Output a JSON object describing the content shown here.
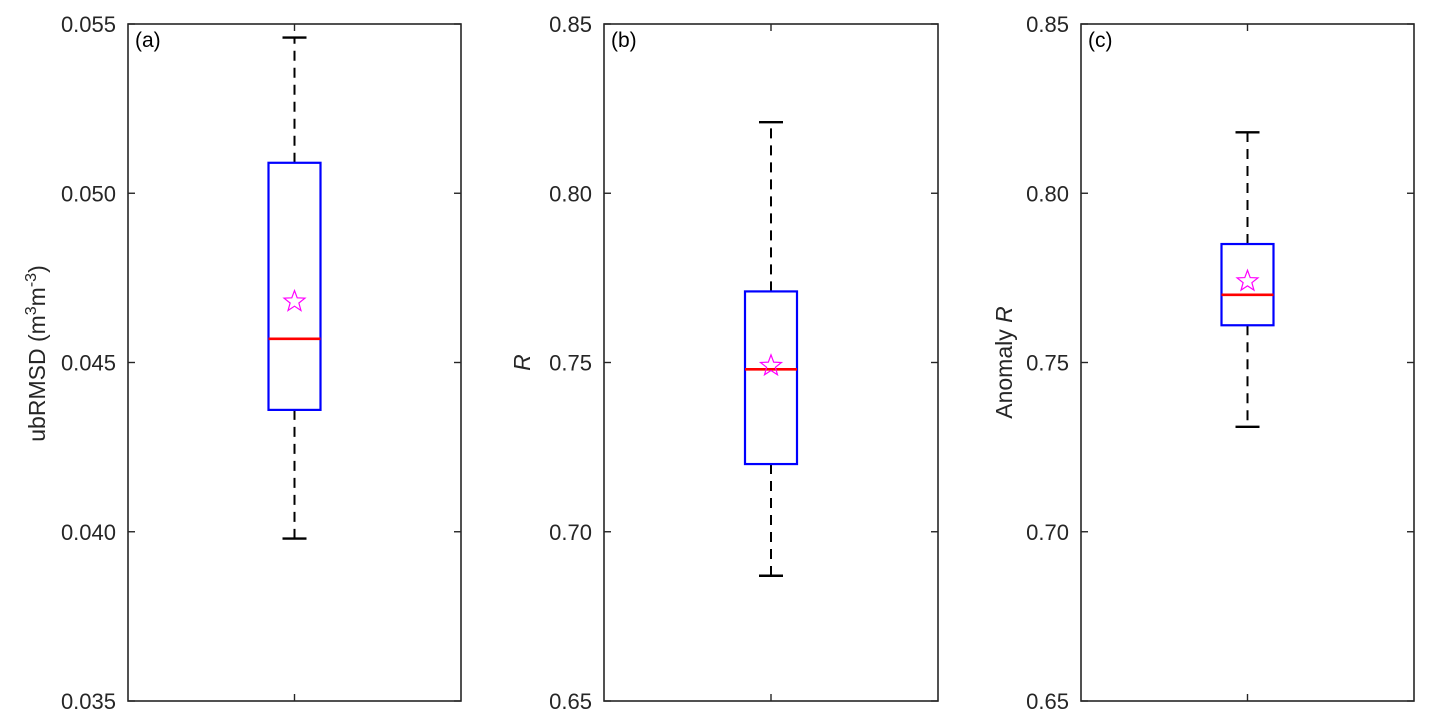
{
  "figure": {
    "panels": [
      {
        "label": "(a)",
        "ylabel": "ubRMSD (m",
        "ylabel_sup1": "3",
        "ylabel_mid": "m",
        "ylabel_sup2": "-3",
        "ylabel_end": ")"
      },
      {
        "label": "(b)",
        "ylabel": "R"
      },
      {
        "label": "(c)",
        "ylabel": "Anomaly",
        "ylabel_italic": "R"
      }
    ]
  },
  "chart_data": [
    {
      "type": "box",
      "panel_label": "(a)",
      "ylabel": "ubRMSD (m3m-3)",
      "ylim": [
        0.035,
        0.055
      ],
      "yticks": [
        0.035,
        0.04,
        0.045,
        0.05,
        0.055
      ],
      "ytick_labels": [
        "0.035",
        "0.040",
        "0.045",
        "0.050",
        "0.055"
      ],
      "box": {
        "whisker_low": 0.0398,
        "q1": 0.0436,
        "median": 0.0457,
        "q3": 0.0509,
        "whisker_high": 0.0546,
        "mean": 0.0468
      },
      "colors": {
        "box": "#0000ff",
        "median": "#ff0000",
        "whisker": "#000000",
        "mean_marker": "#ff00ff"
      },
      "mean_marker": "star"
    },
    {
      "type": "box",
      "panel_label": "(b)",
      "ylabel": "R",
      "ylim": [
        0.65,
        0.85
      ],
      "yticks": [
        0.65,
        0.7,
        0.75,
        0.8,
        0.85
      ],
      "ytick_labels": [
        "0.65",
        "0.70",
        "0.75",
        "0.80",
        "0.85"
      ],
      "box": {
        "whisker_low": 0.687,
        "q1": 0.72,
        "median": 0.748,
        "q3": 0.771,
        "whisker_high": 0.821,
        "mean": 0.749
      },
      "colors": {
        "box": "#0000ff",
        "median": "#ff0000",
        "whisker": "#000000",
        "mean_marker": "#ff00ff"
      },
      "mean_marker": "star"
    },
    {
      "type": "box",
      "panel_label": "(c)",
      "ylabel": "Anomaly R",
      "ylim": [
        0.65,
        0.85
      ],
      "yticks": [
        0.65,
        0.7,
        0.75,
        0.8,
        0.85
      ],
      "ytick_labels": [
        "0.65",
        "0.70",
        "0.75",
        "0.80",
        "0.85"
      ],
      "box": {
        "whisker_low": 0.731,
        "q1": 0.761,
        "median": 0.77,
        "q3": 0.785,
        "whisker_high": 0.818,
        "mean": 0.774
      },
      "colors": {
        "box": "#0000ff",
        "median": "#ff0000",
        "whisker": "#000000",
        "mean_marker": "#ff00ff"
      },
      "mean_marker": "star"
    }
  ]
}
